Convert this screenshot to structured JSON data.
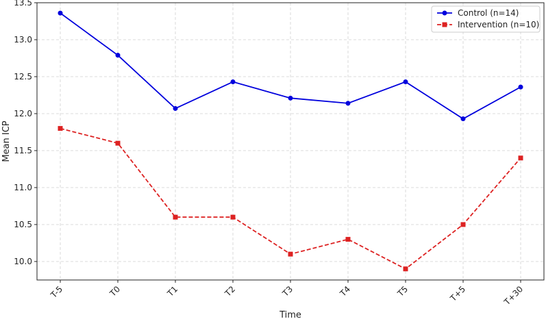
{
  "chart_data": {
    "type": "line",
    "xlabel": "Time",
    "ylabel": "Mean ICP",
    "categories": [
      "T-5",
      "T0",
      "T1",
      "T2",
      "T3",
      "T4",
      "T5",
      "T+5",
      "T+30"
    ],
    "ylim": [
      9.75,
      13.5
    ],
    "yticks": [
      10.0,
      10.5,
      11.0,
      11.5,
      12.0,
      12.5,
      13.0,
      13.5
    ],
    "ytick_labels": [
      "10.0",
      "10.5",
      "11.0",
      "11.5",
      "12.0",
      "12.5",
      "13.0",
      "13.5"
    ],
    "grid": true,
    "legend_position": "top-right",
    "series": [
      {
        "name": "Control (n=14)",
        "values": [
          13.36,
          12.79,
          12.07,
          12.43,
          12.21,
          12.14,
          12.43,
          11.93,
          12.36
        ],
        "color": "#0000dd",
        "marker": "circle",
        "line_style": "solid"
      },
      {
        "name": "Intervention (n=10)",
        "values": [
          11.8,
          11.6,
          10.6,
          10.6,
          10.1,
          10.3,
          9.9,
          10.5,
          11.4
        ],
        "color": "#dd2222",
        "marker": "square",
        "line_style": "dashed"
      }
    ]
  }
}
